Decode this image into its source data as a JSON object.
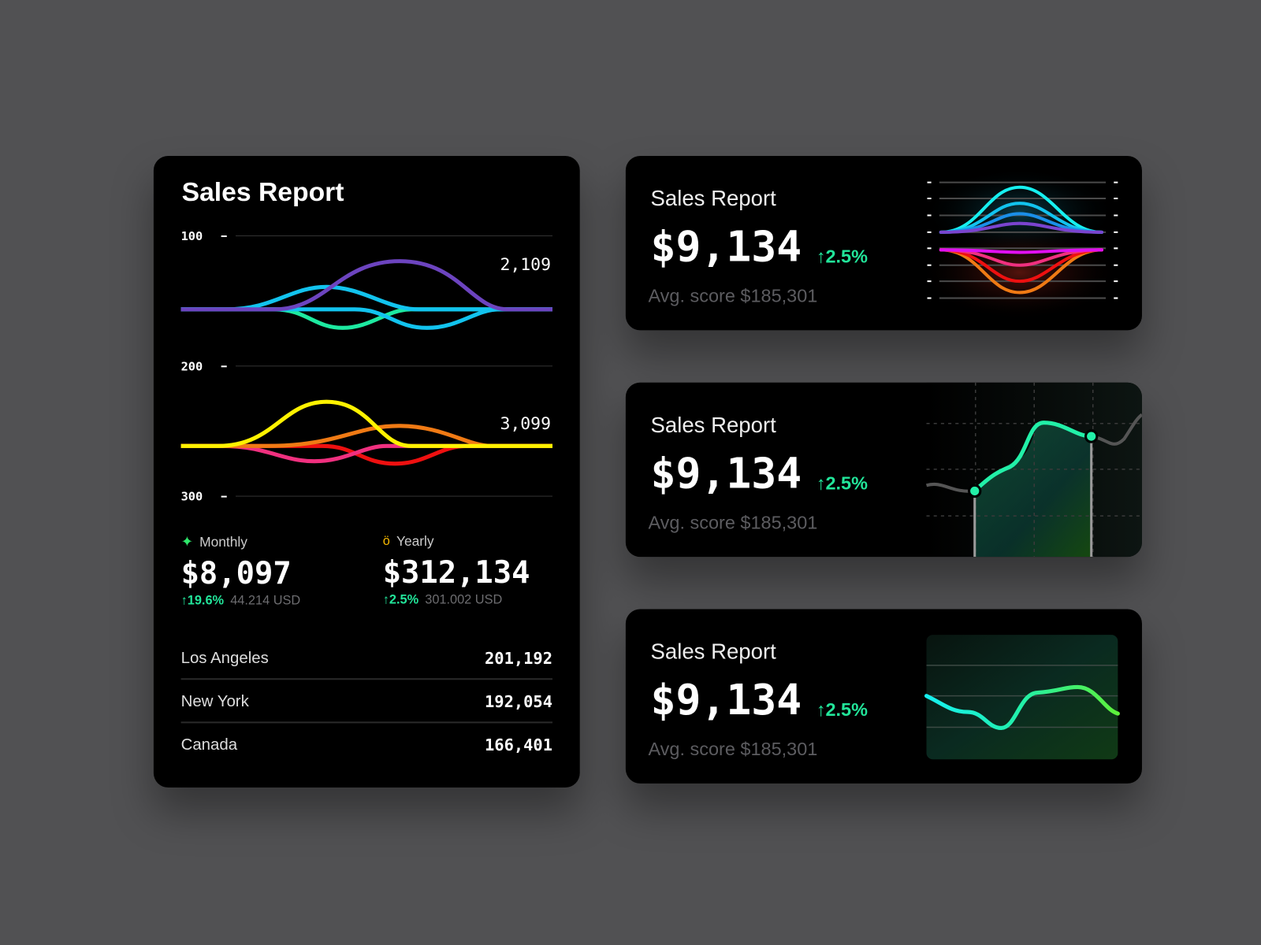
{
  "left_card": {
    "title": "Sales Report",
    "axis_labels": [
      "100",
      "200",
      "300"
    ],
    "curve_labels": [
      "2,109",
      "3,099"
    ],
    "monthly": {
      "label": "Monthly",
      "value": "$8,097",
      "change": "↑19.6%",
      "usd": "44.214 USD",
      "icon": "sparkle-icon"
    },
    "yearly": {
      "label": "Yearly",
      "value": "$312,134",
      "change": "↑2.5%",
      "usd": "301.002 USD",
      "icon": "medal-icon"
    },
    "locations": [
      {
        "name": "Los Angeles",
        "value": "201,192"
      },
      {
        "name": "New York",
        "value": "192,054"
      },
      {
        "name": "Canada",
        "value": "166,401"
      }
    ]
  },
  "right_cards": [
    {
      "title": "Sales Report",
      "value": "$9,134",
      "change": "↑2.5%",
      "avg": "Avg. score $185,301"
    },
    {
      "title": "Sales Report",
      "value": "$9,134",
      "change": "↑2.5%",
      "avg": "Avg. score $185,301"
    },
    {
      "title": "Sales Report",
      "value": "$9,134",
      "change": "↑2.5%",
      "avg": "Avg. score $185,301"
    }
  ],
  "colors": {
    "accent_green": "#22e59a",
    "background": "#515153",
    "card": "#000000"
  }
}
